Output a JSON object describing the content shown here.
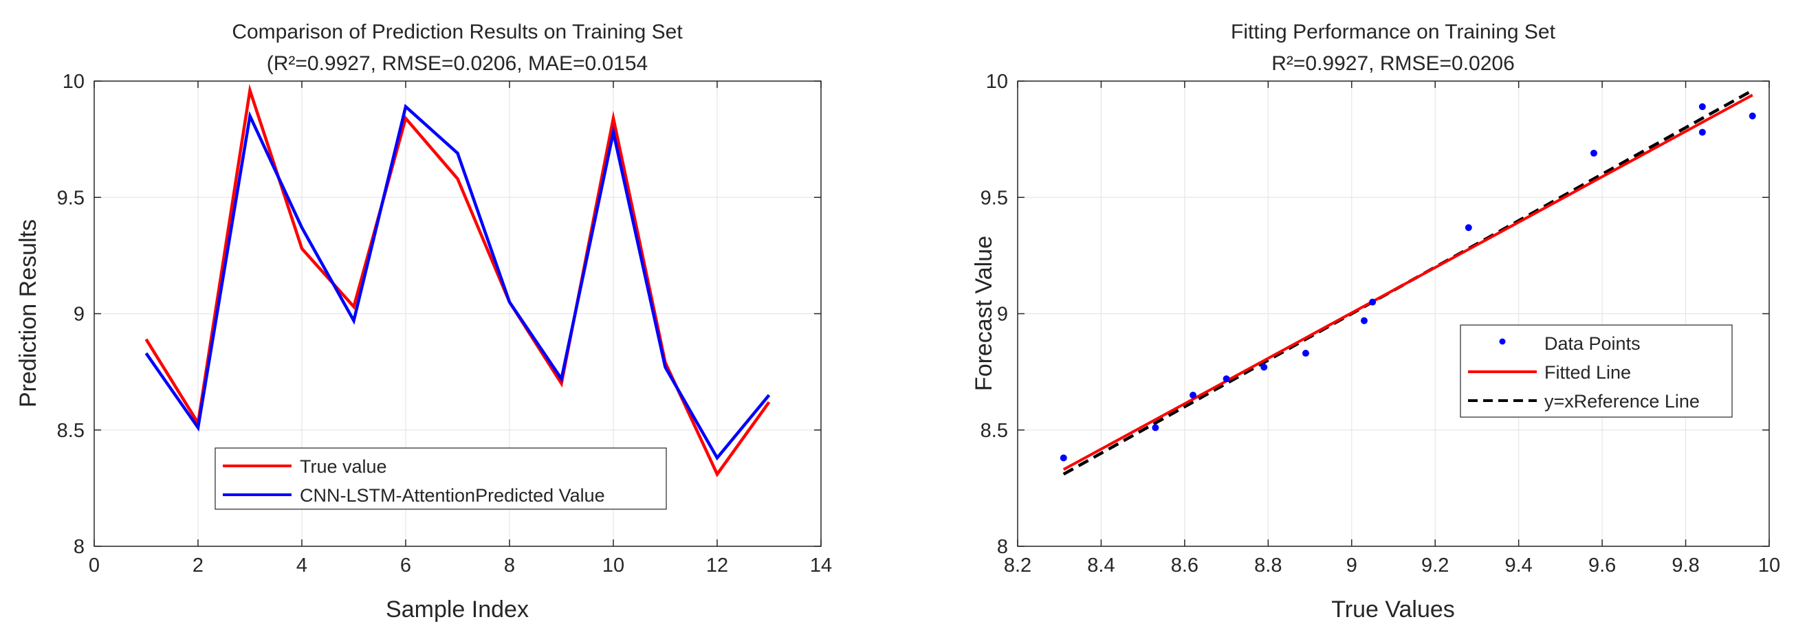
{
  "colors": {
    "true_line": "#ff0000",
    "predicted_line": "#0000ff",
    "data_points": "#0000ff",
    "fitted_line": "#ff0000",
    "reference_line": "#000000",
    "grid": "#e6e6e6",
    "axes": "#262626"
  },
  "chart_data": [
    {
      "type": "line",
      "title": "Comparison of Prediction Results on Training Set",
      "subtitle": "(R²=0.9927, RMSE=0.0206, MAE=0.0154",
      "xlabel": "Sample Index",
      "ylabel": "Prediction Results",
      "xlim": [
        0,
        14
      ],
      "ylim": [
        8,
        10
      ],
      "xticks": [
        0,
        2,
        4,
        6,
        8,
        10,
        12,
        14
      ],
      "yticks": [
        8,
        8.5,
        9,
        9.5,
        10
      ],
      "xtick_labels": [
        "0",
        "2",
        "4",
        "6",
        "8",
        "10",
        "12",
        "14"
      ],
      "ytick_labels": [
        "8",
        "8.5",
        "9",
        "9.5",
        "10"
      ],
      "grid": true,
      "legend": "bottom-center",
      "x": [
        1,
        2,
        3,
        4,
        5,
        6,
        7,
        8,
        9,
        10,
        11,
        12,
        13
      ],
      "series": [
        {
          "name": "True value",
          "color": "#ff0000",
          "values": [
            8.89,
            8.53,
            9.96,
            9.28,
            9.03,
            9.84,
            9.58,
            9.05,
            8.7,
            9.84,
            8.79,
            8.31,
            8.62
          ]
        },
        {
          "name": "CNN-LSTM-AttentionPredicted Value",
          "color": "#0000ff",
          "values": [
            8.83,
            8.51,
            9.85,
            9.37,
            8.97,
            9.89,
            9.69,
            9.05,
            8.72,
            9.78,
            8.77,
            8.38,
            8.65
          ]
        }
      ]
    },
    {
      "type": "scatter",
      "title": "Fitting Performance on Training Set",
      "subtitle": "R²=0.9927, RMSE=0.0206",
      "xlabel": "True Values",
      "ylabel": "Forecast Value",
      "xlim": [
        8.2,
        10
      ],
      "ylim": [
        8,
        10
      ],
      "xticks": [
        8.2,
        8.4,
        8.6,
        8.8,
        9,
        9.2,
        9.4,
        9.6,
        9.8,
        10
      ],
      "yticks": [
        8,
        8.5,
        9,
        9.5,
        10
      ],
      "xtick_labels": [
        "8.2",
        "8.4",
        "8.6",
        "8.8",
        "9",
        "9.2",
        "9.4",
        "9.6",
        "9.8",
        "10"
      ],
      "ytick_labels": [
        "8",
        "8.5",
        "9",
        "9.5",
        "10"
      ],
      "grid": true,
      "legend": "right-center",
      "points": {
        "name": "Data Points",
        "color": "#0000ff",
        "x": [
          8.31,
          8.53,
          8.62,
          8.7,
          8.79,
          8.89,
          9.03,
          9.05,
          9.28,
          9.58,
          9.84,
          9.84,
          9.96
        ],
        "y": [
          8.38,
          8.51,
          8.65,
          8.72,
          8.77,
          8.83,
          8.97,
          9.05,
          9.37,
          9.69,
          9.89,
          9.78,
          9.85
        ]
      },
      "lines": [
        {
          "name": "Fitted Line",
          "color": "#ff0000",
          "style": "solid",
          "x": [
            8.31,
            9.96
          ],
          "y": [
            8.33,
            9.94
          ]
        },
        {
          "name": "y=xReference Line",
          "color": "#000000",
          "style": "dashed",
          "x": [
            8.31,
            9.96
          ],
          "y": [
            8.31,
            9.96
          ]
        }
      ]
    }
  ]
}
